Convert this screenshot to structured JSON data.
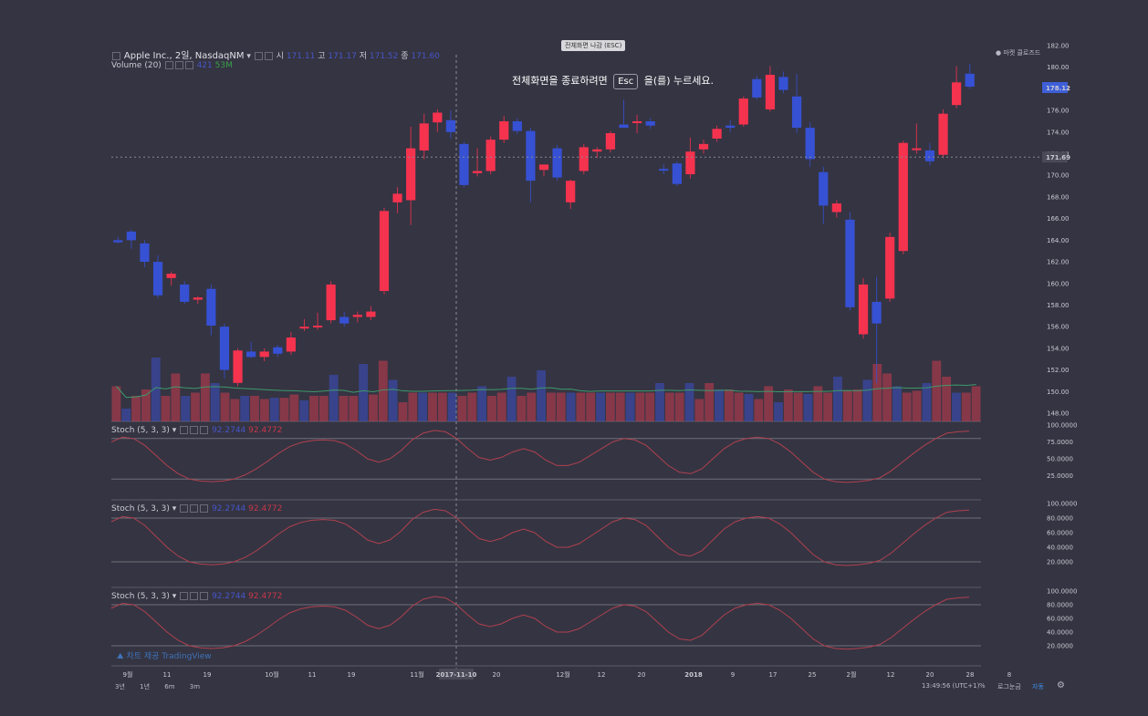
{
  "top_pill": "전체화면 나감 (ESC)",
  "esc_hint": {
    "before": "전체화면을 종료하려면",
    "key": "Esc",
    "after": "을(를) 누르세요."
  },
  "symbol_legend": {
    "title": "Apple Inc., 2일, NasdaqNM",
    "open_label": "시",
    "open_value": "171.11",
    "high_label": "고",
    "high_value": "171.17",
    "low_label": "저",
    "low_value": "171.52",
    "close_label": "종",
    "close_value": "171.60"
  },
  "volume_legend": {
    "label": "Volume (20)",
    "v1": "421",
    "v2": "53M"
  },
  "stoch_legends": [
    {
      "label": "Stoch (5, 3, 3)",
      "k": "92.2744",
      "d": "92.4772"
    },
    {
      "label": "Stoch (5, 3, 3)",
      "k": "92.2744",
      "d": "92.4772"
    },
    {
      "label": "Stoch (5, 3, 3)",
      "k": "92.2744",
      "d": "92.4772"
    }
  ],
  "market_status": "마켓 클로즈드",
  "watermark": "차트 제공 TradingView",
  "time_readout": "13:49:56 (UTC+1)",
  "bottom_controls": {
    "percent": "%",
    "log": "로그눈금",
    "auto": "자동"
  },
  "ranges": [
    "3년",
    "1년",
    "6m",
    "3m"
  ],
  "price_axis": {
    "ticks": [
      "182.00",
      "180.00",
      "178.00",
      "176.00",
      "174.00",
      "172.00",
      "170.00",
      "168.00",
      "166.00",
      "164.00",
      "162.00",
      "160.00",
      "158.00",
      "156.00",
      "154.00",
      "152.00",
      "150.00",
      "148.00"
    ],
    "last_price": "178.12",
    "crosshair_price": "171.69"
  },
  "stoch_axes": [
    [
      "100.0000",
      "75.0000",
      "50.0000",
      "25.0000"
    ],
    [
      "100.0000",
      "80.0000",
      "60.0000",
      "40.0000",
      "20.0000"
    ],
    [
      "100.0000",
      "80.0000",
      "60.0000",
      "40.0000",
      "20.0000"
    ]
  ],
  "time_axis": {
    "labels": [
      "9월",
      "11",
      "19",
      "10월",
      "11",
      "19",
      "11월",
      "2017-11-10",
      "20",
      "12월",
      "12",
      "20",
      "2018",
      "9",
      "17",
      "25",
      "2월",
      "12",
      "20",
      "28",
      "8"
    ],
    "crosshair_label": "2017-11-10"
  },
  "colors": {
    "up": "#f5334f",
    "down": "#3651d4",
    "background": "#353442",
    "ma": "#3d9a6a",
    "stoch": "#b0414f"
  },
  "chart_data": [
    {
      "type": "candlestick",
      "title": "Apple Inc., 2일, NasdaqNM",
      "ylim": [
        147,
        183
      ],
      "candles": [
        {
          "o": 164.0,
          "h": 164.3,
          "l": 163.7,
          "c": 163.8
        },
        {
          "o": 164.8,
          "h": 165.0,
          "l": 163.2,
          "c": 164.0
        },
        {
          "o": 163.7,
          "h": 164.0,
          "l": 161.5,
          "c": 162.0
        },
        {
          "o": 162.0,
          "h": 162.6,
          "l": 158.6,
          "c": 158.9
        },
        {
          "o": 160.5,
          "h": 161.1,
          "l": 159.8,
          "c": 160.9
        },
        {
          "o": 159.9,
          "h": 160.2,
          "l": 158.1,
          "c": 158.3
        },
        {
          "o": 158.5,
          "h": 158.8,
          "l": 158.1,
          "c": 158.7
        },
        {
          "o": 159.5,
          "h": 159.9,
          "l": 155.2,
          "c": 156.1
        },
        {
          "o": 156.0,
          "h": 156.3,
          "l": 151.2,
          "c": 152.0
        },
        {
          "o": 150.8,
          "h": 154.0,
          "l": 150.5,
          "c": 153.8
        },
        {
          "o": 153.7,
          "h": 154.6,
          "l": 153.1,
          "c": 153.2
        },
        {
          "o": 153.2,
          "h": 154.0,
          "l": 152.8,
          "c": 153.7
        },
        {
          "o": 154.1,
          "h": 154.3,
          "l": 153.2,
          "c": 153.5
        },
        {
          "o": 153.7,
          "h": 155.5,
          "l": 153.4,
          "c": 155.0
        },
        {
          "o": 155.9,
          "h": 156.7,
          "l": 155.6,
          "c": 156.0
        },
        {
          "o": 156.0,
          "h": 157.3,
          "l": 155.7,
          "c": 156.1
        },
        {
          "o": 156.6,
          "h": 160.2,
          "l": 156.3,
          "c": 159.9
        },
        {
          "o": 156.9,
          "h": 157.4,
          "l": 156.0,
          "c": 156.3
        },
        {
          "o": 156.9,
          "h": 157.4,
          "l": 156.4,
          "c": 157.1
        },
        {
          "o": 156.9,
          "h": 157.9,
          "l": 156.6,
          "c": 157.4
        },
        {
          "o": 159.3,
          "h": 167.0,
          "l": 159.0,
          "c": 166.7
        },
        {
          "o": 167.5,
          "h": 168.9,
          "l": 166.5,
          "c": 168.3
        },
        {
          "o": 167.7,
          "h": 174.5,
          "l": 165.4,
          "c": 172.5
        },
        {
          "o": 172.3,
          "h": 175.7,
          "l": 171.5,
          "c": 174.8
        },
        {
          "o": 174.9,
          "h": 176.1,
          "l": 174.0,
          "c": 175.8
        },
        {
          "o": 175.1,
          "h": 176.0,
          "l": 173.4,
          "c": 174.0
        },
        {
          "o": 172.9,
          "h": 173.1,
          "l": 168.9,
          "c": 169.1
        },
        {
          "o": 170.2,
          "h": 172.5,
          "l": 169.9,
          "c": 170.4
        },
        {
          "o": 170.4,
          "h": 173.6,
          "l": 170.1,
          "c": 173.3
        },
        {
          "o": 173.3,
          "h": 175.5,
          "l": 173.0,
          "c": 175.0
        },
        {
          "o": 175.0,
          "h": 175.3,
          "l": 173.8,
          "c": 174.1
        },
        {
          "o": 174.1,
          "h": 174.4,
          "l": 167.5,
          "c": 169.5
        },
        {
          "o": 170.5,
          "h": 171.0,
          "l": 169.9,
          "c": 171.0
        },
        {
          "o": 172.5,
          "h": 172.8,
          "l": 169.5,
          "c": 169.8
        },
        {
          "o": 167.5,
          "h": 169.6,
          "l": 166.9,
          "c": 169.5
        },
        {
          "o": 170.4,
          "h": 172.9,
          "l": 170.1,
          "c": 172.6
        },
        {
          "o": 172.2,
          "h": 172.6,
          "l": 171.6,
          "c": 172.4
        },
        {
          "o": 172.4,
          "h": 174.1,
          "l": 172.1,
          "c": 173.9
        },
        {
          "o": 174.7,
          "h": 177.0,
          "l": 174.4,
          "c": 174.4
        },
        {
          "o": 174.9,
          "h": 175.6,
          "l": 173.9,
          "c": 175.0
        },
        {
          "o": 175.0,
          "h": 175.3,
          "l": 174.3,
          "c": 174.6
        },
        {
          "o": 170.6,
          "h": 171.0,
          "l": 170.1,
          "c": 170.5
        },
        {
          "o": 171.1,
          "h": 171.3,
          "l": 169.0,
          "c": 169.2
        },
        {
          "o": 170.1,
          "h": 173.5,
          "l": 169.7,
          "c": 172.2
        },
        {
          "o": 172.4,
          "h": 173.3,
          "l": 172.0,
          "c": 172.9
        },
        {
          "o": 173.4,
          "h": 174.6,
          "l": 173.1,
          "c": 174.3
        },
        {
          "o": 174.6,
          "h": 175.1,
          "l": 174.0,
          "c": 174.4
        },
        {
          "o": 174.7,
          "h": 177.3,
          "l": 174.5,
          "c": 177.1
        },
        {
          "o": 178.9,
          "h": 179.2,
          "l": 177.0,
          "c": 177.2
        },
        {
          "o": 176.1,
          "h": 180.1,
          "l": 175.9,
          "c": 179.3
        },
        {
          "o": 179.1,
          "h": 179.6,
          "l": 177.6,
          "c": 177.9
        },
        {
          "o": 177.3,
          "h": 179.4,
          "l": 173.9,
          "c": 174.4
        },
        {
          "o": 174.4,
          "h": 174.9,
          "l": 170.8,
          "c": 171.5
        },
        {
          "o": 170.3,
          "h": 170.8,
          "l": 165.5,
          "c": 167.2
        },
        {
          "o": 166.6,
          "h": 167.7,
          "l": 166.1,
          "c": 167.4
        },
        {
          "o": 165.9,
          "h": 166.6,
          "l": 157.5,
          "c": 157.8
        },
        {
          "o": 155.3,
          "h": 160.5,
          "l": 154.9,
          "c": 159.9
        },
        {
          "o": 158.3,
          "h": 160.6,
          "l": 150.8,
          "c": 156.3
        },
        {
          "o": 158.6,
          "h": 164.7,
          "l": 158.3,
          "c": 164.3
        },
        {
          "o": 163.0,
          "h": 173.2,
          "l": 162.7,
          "c": 173.0
        },
        {
          "o": 172.4,
          "h": 174.8,
          "l": 172.0,
          "c": 172.5
        },
        {
          "o": 172.3,
          "h": 173.0,
          "l": 170.9,
          "c": 171.3
        },
        {
          "o": 171.9,
          "h": 176.1,
          "l": 171.6,
          "c": 175.7
        },
        {
          "o": 176.5,
          "h": 180.1,
          "l": 176.2,
          "c": 178.6
        },
        {
          "o": 179.4,
          "h": 180.3,
          "l": 178.0,
          "c": 178.2
        }
      ]
    },
    {
      "type": "bar",
      "title": "Volume (20)",
      "values": [
        55,
        20,
        40,
        50,
        100,
        40,
        75,
        40,
        45,
        75,
        60,
        45,
        35,
        40,
        40,
        35,
        37,
        37,
        42,
        33,
        40,
        40,
        73,
        40,
        40,
        90,
        42,
        95,
        65,
        30,
        45,
        45,
        45,
        45,
        45,
        40,
        45,
        55,
        40,
        45,
        70,
        40,
        45,
        80,
        45,
        45,
        45,
        45,
        45,
        45,
        45,
        45,
        45,
        45,
        45,
        60,
        45,
        45,
        60,
        35,
        60,
        50,
        50,
        45,
        43,
        35,
        55,
        30,
        50,
        45,
        43,
        55,
        45,
        70,
        48,
        50,
        65,
        90,
        75,
        55,
        45,
        48,
        60,
        95,
        70,
        45,
        45,
        55
      ],
      "ylim": [
        0,
        200
      ]
    },
    {
      "type": "line",
      "title": "Stoch (5, 3, 3)",
      "ylim": [
        0,
        100
      ],
      "ylabel": "",
      "levels": [
        80,
        20
      ],
      "series": [
        {
          "values": [
            75,
            82,
            80,
            70,
            55,
            40,
            28,
            20,
            17,
            16,
            17,
            20,
            26,
            35,
            46,
            58,
            68,
            74,
            77,
            78,
            77,
            72,
            62,
            50,
            45,
            50,
            62,
            78,
            88,
            92,
            90,
            80,
            65,
            52,
            48,
            52,
            60,
            65,
            60,
            48,
            40,
            40,
            45,
            55,
            65,
            75,
            80,
            78,
            70,
            55,
            40,
            30,
            28,
            35,
            50,
            65,
            75,
            80,
            82,
            80,
            72,
            60,
            45,
            30,
            20,
            16,
            15,
            16,
            18,
            22,
            32,
            45,
            58,
            70,
            80,
            88,
            90,
            91
          ]
        }
      ]
    }
  ]
}
